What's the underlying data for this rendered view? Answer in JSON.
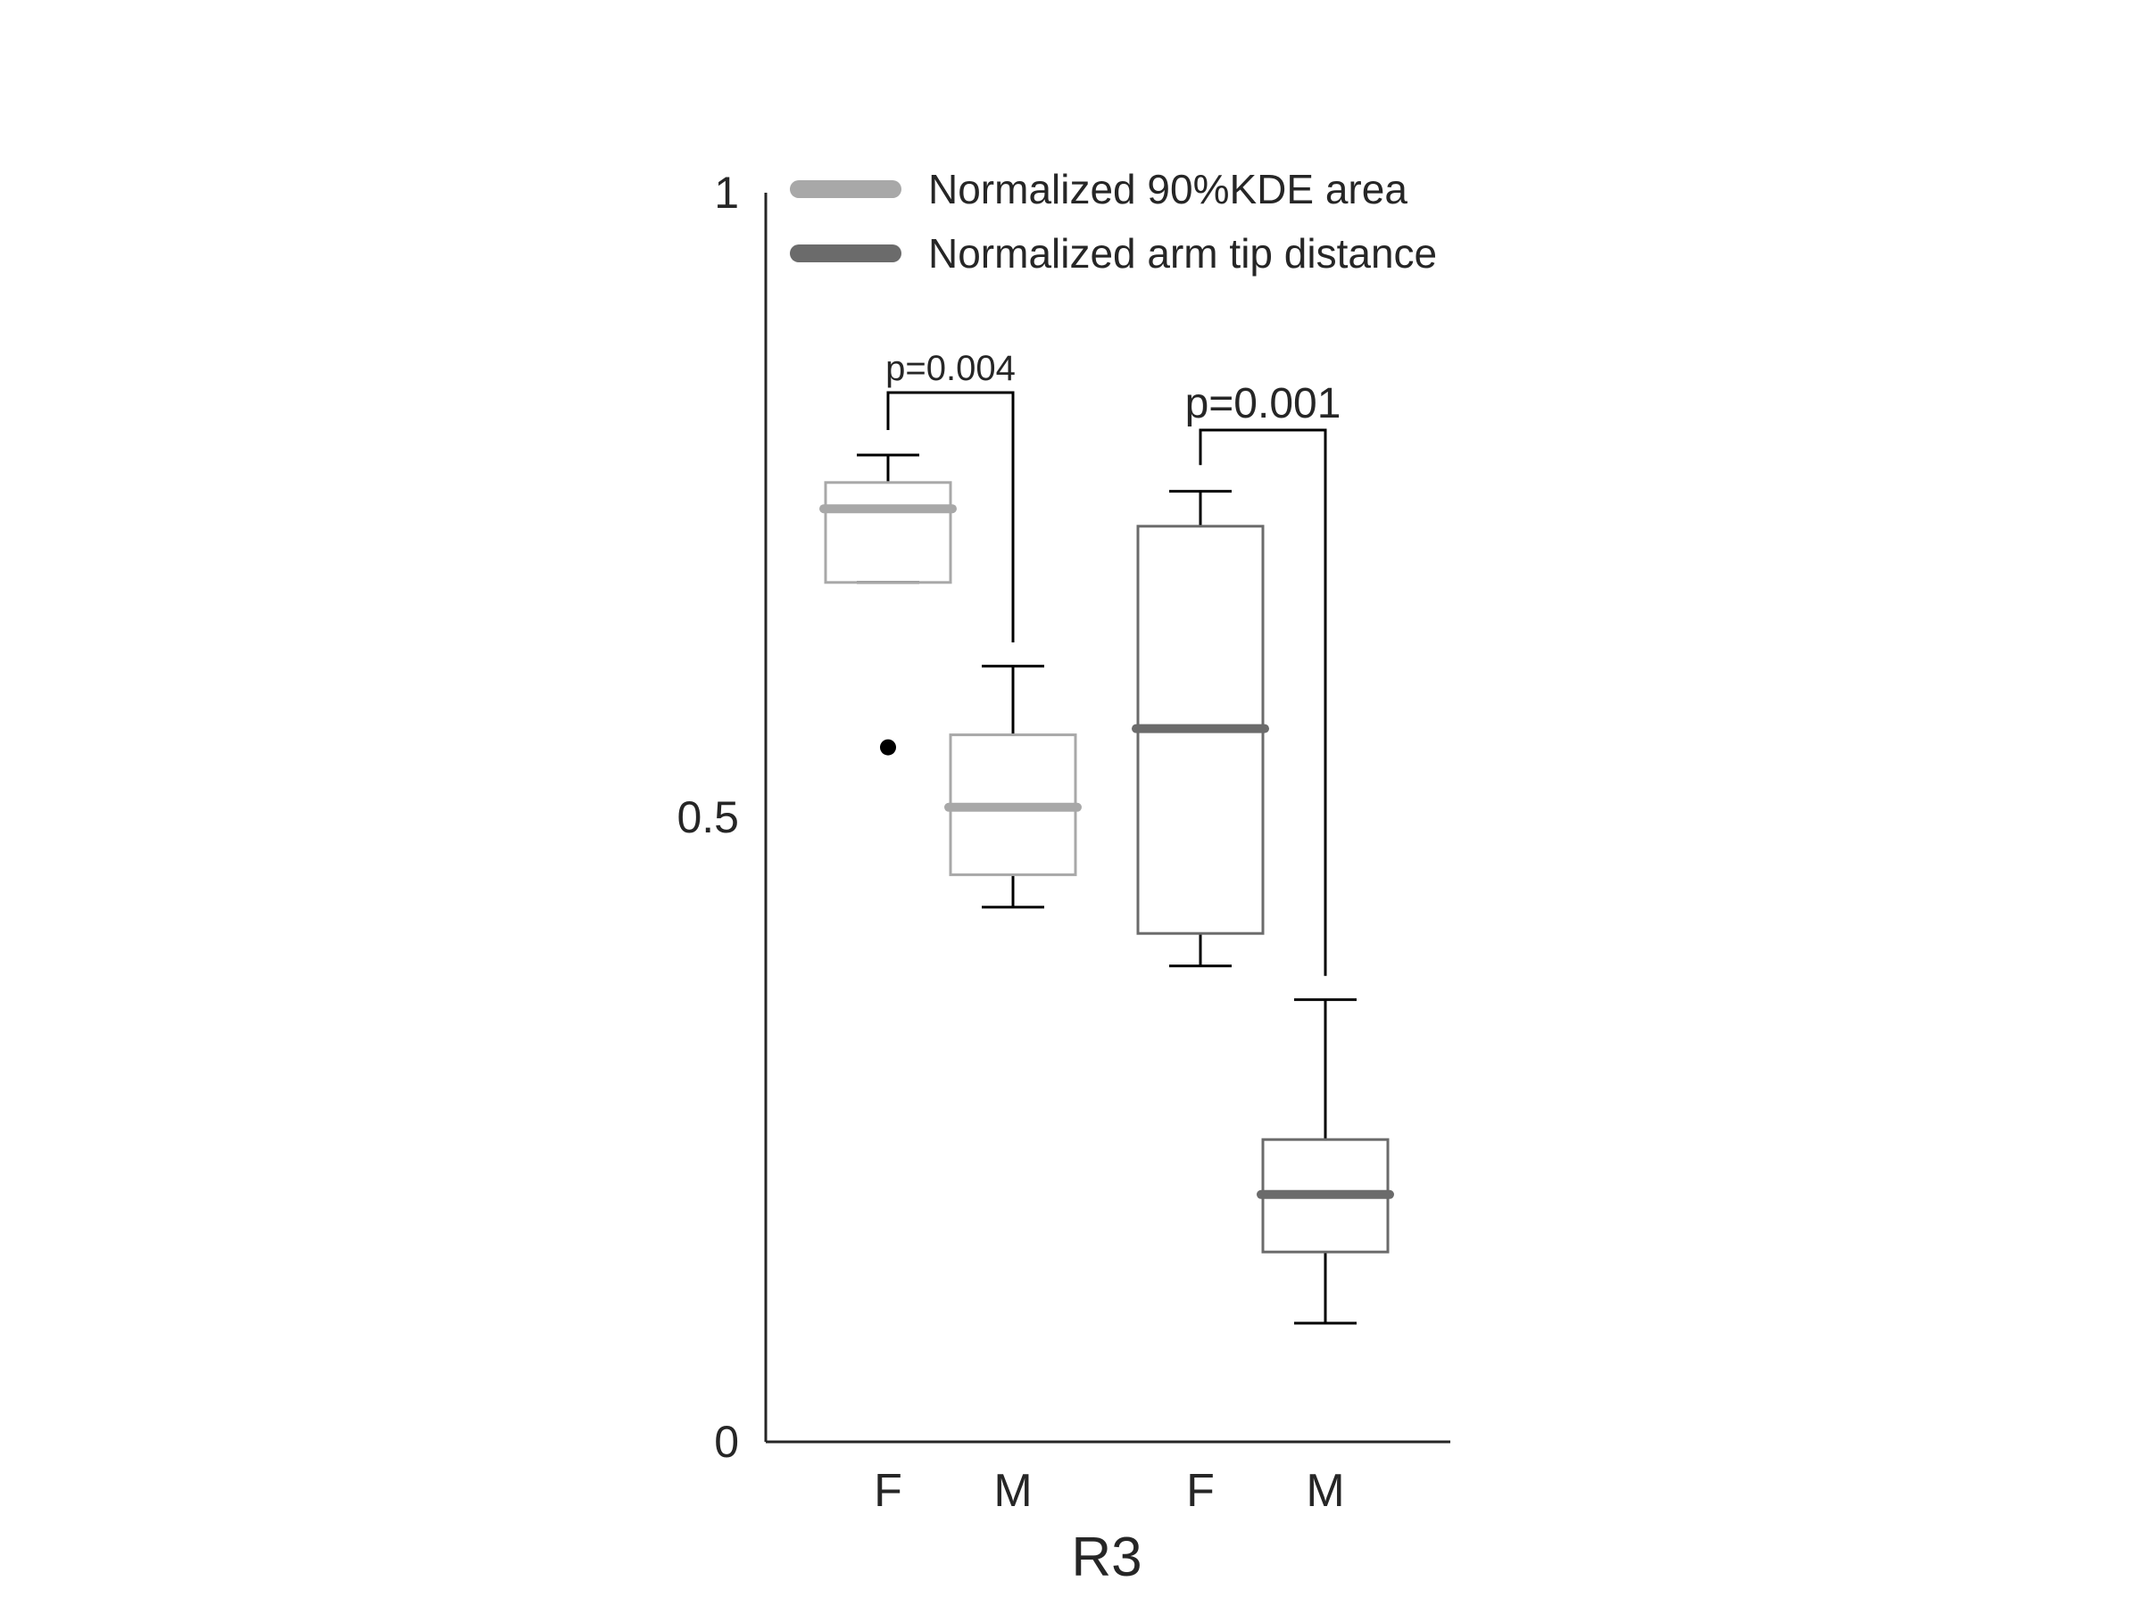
{
  "chart_data": {
    "type": "box",
    "ylim": [
      0,
      1
    ],
    "y_ticks": [
      {
        "value": 0,
        "label": "0"
      },
      {
        "value": 0.5,
        "label": "0.5"
      },
      {
        "value": 1,
        "label": "1"
      }
    ],
    "xlabel": "R3",
    "categories": [
      "F",
      "M",
      "F",
      "M"
    ],
    "grid": false,
    "legend": {
      "position": "top",
      "entries": [
        {
          "label": "Normalized 90%KDE area",
          "color": "#a8a8a8"
        },
        {
          "label": "Normalized arm tip distance",
          "color": "#6b6b6b"
        }
      ]
    },
    "series": [
      {
        "name": "Normalized 90%KDE area",
        "color": "#a8a8a8",
        "boxes": [
          {
            "category": "F",
            "whisker_low": 0.688,
            "q1": 0.688,
            "median": 0.747,
            "q3": 0.768,
            "whisker_high": 0.79,
            "outliers": [
              0.556
            ]
          },
          {
            "category": "M",
            "whisker_low": 0.428,
            "q1": 0.454,
            "median": 0.508,
            "q3": 0.566,
            "whisker_high": 0.621,
            "outliers": []
          }
        ]
      },
      {
        "name": "Normalized arm tip distance",
        "color": "#6b6b6b",
        "boxes": [
          {
            "category": "F",
            "whisker_low": 0.381,
            "q1": 0.407,
            "median": 0.571,
            "q3": 0.733,
            "whisker_high": 0.761,
            "outliers": []
          },
          {
            "category": "M",
            "whisker_low": 0.095,
            "q1": 0.152,
            "median": 0.198,
            "q3": 0.242,
            "whisker_high": 0.354,
            "outliers": []
          }
        ]
      }
    ],
    "annotations": [
      {
        "text": "p=0.004",
        "series": 0,
        "left_top": 0.81,
        "right_top": 0.64,
        "bar": 0.84,
        "size": "small"
      },
      {
        "text": "p=0.001",
        "series": 1,
        "left_top": 0.782,
        "right_top": 0.373,
        "bar": 0.81,
        "size": "big"
      }
    ]
  }
}
